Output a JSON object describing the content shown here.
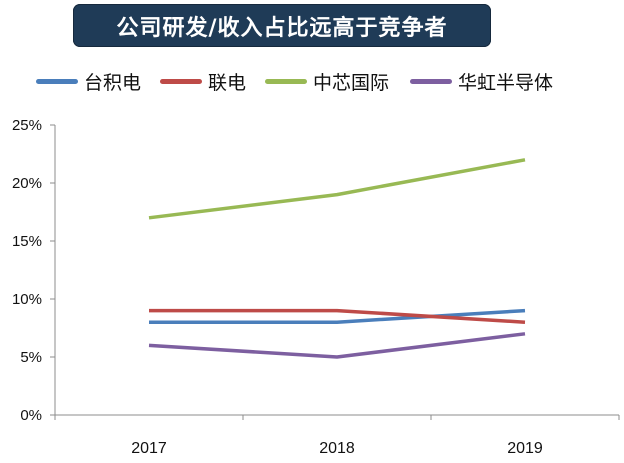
{
  "chart_data": {
    "type": "line",
    "title": "公司研发/收入占比远高于竞争者",
    "xlabel": "",
    "ylabel": "",
    "categories": [
      "2017",
      "2018",
      "2019"
    ],
    "ylim": [
      0,
      0.25
    ],
    "yticks": [
      "0%",
      "5%",
      "10%",
      "15%",
      "20%",
      "25%"
    ],
    "grid": false,
    "legend_position": "top",
    "series": [
      {
        "name": "台积电",
        "color": "#4a7ebb",
        "values": [
          0.08,
          0.08,
          0.09
        ]
      },
      {
        "name": "联电",
        "color": "#be4b48",
        "values": [
          0.09,
          0.09,
          0.08
        ]
      },
      {
        "name": "中芯国际",
        "color": "#98b954",
        "values": [
          0.17,
          0.19,
          0.22
        ]
      },
      {
        "name": "华虹半导体",
        "color": "#7d5fa0",
        "values": [
          0.06,
          0.05,
          0.07
        ]
      }
    ]
  }
}
